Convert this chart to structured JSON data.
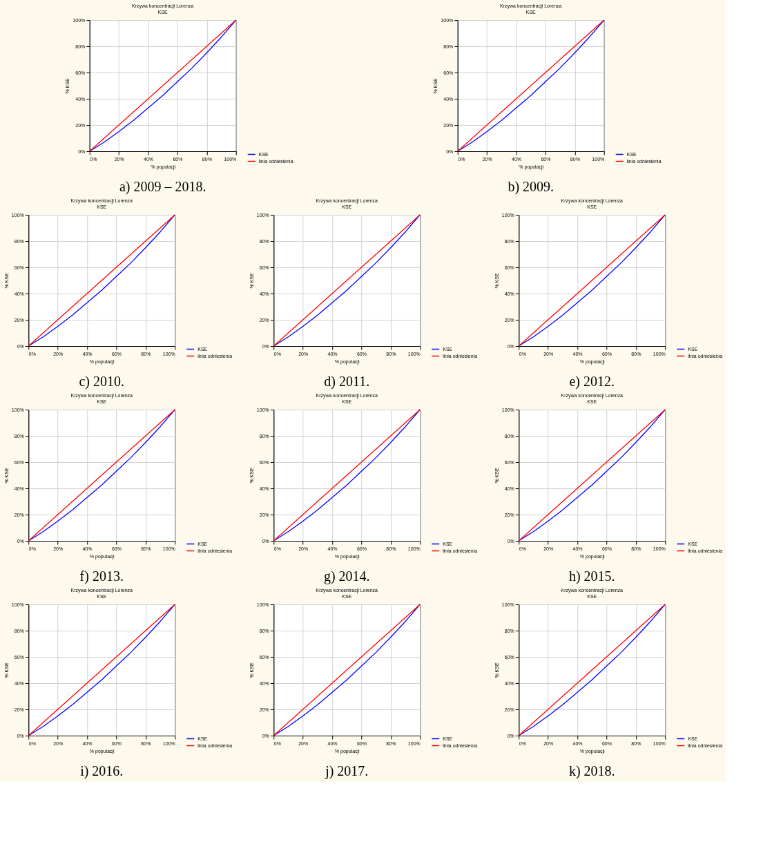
{
  "chart_data": [
    {
      "type": "line",
      "title": "Krzywa koncentracji Lorenza",
      "subtitle": "KSE",
      "xlabel": "% populacji",
      "ylabel": "% KSE",
      "annotations": [
        "a)    2009 – 2018."
      ],
      "x": [
        0,
        10,
        20,
        30,
        40,
        50,
        60,
        70,
        80,
        90,
        100
      ],
      "series": [
        {
          "name": "KSE",
          "color": "#0000ff",
          "values": [
            0,
            7,
            15,
            23.5,
            33,
            42.5,
            53,
            63.5,
            75,
            87,
            100
          ]
        },
        {
          "name": "linia odniesienia",
          "color": "#ff0000",
          "values": [
            0,
            10,
            20,
            30,
            40,
            50,
            60,
            70,
            80,
            90,
            100
          ]
        }
      ],
      "xlim": [
        0,
        100
      ],
      "ylim": [
        0,
        100
      ],
      "xticks": [
        {
          "value": 0,
          "label": "0%"
        },
        {
          "value": 20,
          "label": "20%"
        },
        {
          "value": 40,
          "label": "40%"
        },
        {
          "value": 60,
          "label": "60%"
        },
        {
          "value": 80,
          "label": "80%"
        },
        {
          "value": 100,
          "label": "100%"
        }
      ],
      "yticks": [
        {
          "value": 0,
          "label": "0%"
        },
        {
          "value": 20,
          "label": "20%"
        },
        {
          "value": 40,
          "label": "40%"
        },
        {
          "value": 60,
          "label": "60%"
        },
        {
          "value": 80,
          "label": "80%"
        },
        {
          "value": 100,
          "label": "100%"
        }
      ],
      "grid": true,
      "legend": "bottom right"
    },
    {
      "type": "line",
      "title": "Krzywa koncentracji Lorenza",
      "subtitle": "KSE",
      "xlabel": "% populacji",
      "ylabel": "% KSE",
      "annotations": [
        "b)    2009."
      ],
      "x": [
        0,
        10,
        20,
        30,
        40,
        50,
        60,
        70,
        80,
        90,
        100
      ],
      "series": [
        {
          "name": "KSE",
          "color": "#0000ff",
          "values": [
            0,
            7,
            15,
            23.5,
            33,
            42.5,
            53,
            63.5,
            75,
            87,
            100
          ]
        },
        {
          "name": "linia odniesienia",
          "color": "#ff0000",
          "values": [
            0,
            10,
            20,
            30,
            40,
            50,
            60,
            70,
            80,
            90,
            100
          ]
        }
      ],
      "xlim": [
        0,
        100
      ],
      "ylim": [
        0,
        100
      ],
      "xticks": [
        {
          "value": 0,
          "label": "0%"
        },
        {
          "value": 20,
          "label": "20%"
        },
        {
          "value": 40,
          "label": "40%"
        },
        {
          "value": 60,
          "label": "60%"
        },
        {
          "value": 80,
          "label": "80%"
        },
        {
          "value": 100,
          "label": "100%"
        }
      ],
      "yticks": [
        {
          "value": 0,
          "label": "0%"
        },
        {
          "value": 20,
          "label": "20%"
        },
        {
          "value": 40,
          "label": "40%"
        },
        {
          "value": 60,
          "label": "60%"
        },
        {
          "value": 80,
          "label": "80%"
        },
        {
          "value": 100,
          "label": "100%"
        }
      ],
      "grid": true,
      "legend": "bottom right"
    },
    {
      "type": "line",
      "title": "Krzywa koncentracji Lorenza",
      "subtitle": "KSE",
      "xlabel": "% populacji",
      "ylabel": "% KSE",
      "annotations": [
        "c)    2010."
      ],
      "x": [
        0,
        10,
        20,
        30,
        40,
        50,
        60,
        70,
        80,
        90,
        100
      ],
      "series": [
        {
          "name": "KSE",
          "color": "#0000ff",
          "values": [
            0,
            7,
            15,
            23.5,
            33,
            42.5,
            53,
            63.5,
            75,
            87,
            100
          ]
        },
        {
          "name": "linia odniesienia",
          "color": "#ff0000",
          "values": [
            0,
            10,
            20,
            30,
            40,
            50,
            60,
            70,
            80,
            90,
            100
          ]
        }
      ],
      "xlim": [
        0,
        100
      ],
      "ylim": [
        0,
        100
      ],
      "xticks": [
        {
          "value": 0,
          "label": "0%"
        },
        {
          "value": 20,
          "label": "20%"
        },
        {
          "value": 40,
          "label": "40%"
        },
        {
          "value": 60,
          "label": "60%"
        },
        {
          "value": 80,
          "label": "80%"
        },
        {
          "value": 100,
          "label": "100%"
        }
      ],
      "yticks": [
        {
          "value": 0,
          "label": "0%"
        },
        {
          "value": 20,
          "label": "20%"
        },
        {
          "value": 40,
          "label": "40%"
        },
        {
          "value": 60,
          "label": "60%"
        },
        {
          "value": 80,
          "label": "80%"
        },
        {
          "value": 100,
          "label": "100%"
        }
      ],
      "grid": true,
      "legend": "bottom right"
    },
    {
      "type": "line",
      "title": "Krzywa koncentracji Lorenza",
      "subtitle": "KSE",
      "xlabel": "% populacji",
      "ylabel": "% KSE",
      "annotations": [
        "d)    2011."
      ],
      "x": [
        0,
        10,
        20,
        30,
        40,
        50,
        60,
        70,
        80,
        90,
        100
      ],
      "series": [
        {
          "name": "KSE",
          "color": "#0000ff",
          "values": [
            0,
            7,
            15,
            23.5,
            33,
            42.5,
            53,
            63.5,
            75,
            87,
            100
          ]
        },
        {
          "name": "linia odniesienia",
          "color": "#ff0000",
          "values": [
            0,
            10,
            20,
            30,
            40,
            50,
            60,
            70,
            80,
            90,
            100
          ]
        }
      ],
      "xlim": [
        0,
        100
      ],
      "ylim": [
        0,
        100
      ],
      "xticks": [
        {
          "value": 0,
          "label": "0%"
        },
        {
          "value": 20,
          "label": "20%"
        },
        {
          "value": 40,
          "label": "40%"
        },
        {
          "value": 60,
          "label": "60%"
        },
        {
          "value": 80,
          "label": "80%"
        },
        {
          "value": 100,
          "label": "100%"
        }
      ],
      "yticks": [
        {
          "value": 0,
          "label": "0%"
        },
        {
          "value": 20,
          "label": "20%"
        },
        {
          "value": 40,
          "label": "40%"
        },
        {
          "value": 60,
          "label": "60%"
        },
        {
          "value": 80,
          "label": "80%"
        },
        {
          "value": 100,
          "label": "100%"
        }
      ],
      "grid": true,
      "legend": "bottom right"
    },
    {
      "type": "line",
      "title": "Krzywa koncentracji Lorenza",
      "subtitle": "KSE",
      "xlabel": "% populacji",
      "ylabel": "% KSE",
      "annotations": [
        "e)    2012."
      ],
      "x": [
        0,
        10,
        20,
        30,
        40,
        50,
        60,
        70,
        80,
        90,
        100
      ],
      "series": [
        {
          "name": "KSE",
          "color": "#0000ff",
          "values": [
            0,
            7,
            15,
            23.5,
            33,
            42.5,
            53,
            63.5,
            75,
            87,
            100
          ]
        },
        {
          "name": "linia odniesienia",
          "color": "#ff0000",
          "values": [
            0,
            10,
            20,
            30,
            40,
            50,
            60,
            70,
            80,
            90,
            100
          ]
        }
      ],
      "xlim": [
        0,
        100
      ],
      "ylim": [
        0,
        100
      ],
      "xticks": [
        {
          "value": 0,
          "label": "0%"
        },
        {
          "value": 20,
          "label": "20%"
        },
        {
          "value": 40,
          "label": "40%"
        },
        {
          "value": 60,
          "label": "60%"
        },
        {
          "value": 80,
          "label": "80%"
        },
        {
          "value": 100,
          "label": "100%"
        }
      ],
      "yticks": [
        {
          "value": 0,
          "label": "0%"
        },
        {
          "value": 20,
          "label": "20%"
        },
        {
          "value": 40,
          "label": "40%"
        },
        {
          "value": 60,
          "label": "60%"
        },
        {
          "value": 80,
          "label": "80%"
        },
        {
          "value": 100,
          "label": "100%"
        }
      ],
      "grid": true,
      "legend": "bottom right"
    },
    {
      "type": "line",
      "title": "Krzywa koncentracji Lorenza",
      "subtitle": "KSE",
      "xlabel": "% populacji",
      "ylabel": "% KSE",
      "annotations": [
        "f)    2013."
      ],
      "x": [
        0,
        10,
        20,
        30,
        40,
        50,
        60,
        70,
        80,
        90,
        100
      ],
      "series": [
        {
          "name": "KSE",
          "color": "#0000ff",
          "values": [
            0,
            7,
            15,
            23.5,
            33,
            42.5,
            53,
            63.5,
            75,
            87,
            100
          ]
        },
        {
          "name": "linia odniesienia",
          "color": "#ff0000",
          "values": [
            0,
            10,
            20,
            30,
            40,
            50,
            60,
            70,
            80,
            90,
            100
          ]
        }
      ],
      "xlim": [
        0,
        100
      ],
      "ylim": [
        0,
        100
      ],
      "xticks": [
        {
          "value": 0,
          "label": "0%"
        },
        {
          "value": 20,
          "label": "20%"
        },
        {
          "value": 40,
          "label": "40%"
        },
        {
          "value": 60,
          "label": "60%"
        },
        {
          "value": 80,
          "label": "80%"
        },
        {
          "value": 100,
          "label": "100%"
        }
      ],
      "yticks": [
        {
          "value": 0,
          "label": "0%"
        },
        {
          "value": 20,
          "label": "20%"
        },
        {
          "value": 40,
          "label": "40%"
        },
        {
          "value": 60,
          "label": "60%"
        },
        {
          "value": 80,
          "label": "80%"
        },
        {
          "value": 100,
          "label": "100%"
        }
      ],
      "grid": true,
      "legend": "bottom right"
    },
    {
      "type": "line",
      "title": "Krzywa koncentracji Lorenza",
      "subtitle": "KSE",
      "xlabel": "% populacji",
      "ylabel": "% KSE",
      "annotations": [
        "g)    2014."
      ],
      "x": [
        0,
        10,
        20,
        30,
        40,
        50,
        60,
        70,
        80,
        90,
        100
      ],
      "series": [
        {
          "name": "KSE",
          "color": "#0000ff",
          "values": [
            0,
            7,
            15,
            23.5,
            33,
            42.5,
            53,
            63.5,
            75,
            87,
            100
          ]
        },
        {
          "name": "linia odniesienia",
          "color": "#ff0000",
          "values": [
            0,
            10,
            20,
            30,
            40,
            50,
            60,
            70,
            80,
            90,
            100
          ]
        }
      ],
      "xlim": [
        0,
        100
      ],
      "ylim": [
        0,
        100
      ],
      "xticks": [
        {
          "value": 0,
          "label": "0%"
        },
        {
          "value": 20,
          "label": "20%"
        },
        {
          "value": 40,
          "label": "40%"
        },
        {
          "value": 60,
          "label": "60%"
        },
        {
          "value": 80,
          "label": "80%"
        },
        {
          "value": 100,
          "label": "100%"
        }
      ],
      "yticks": [
        {
          "value": 0,
          "label": "0%"
        },
        {
          "value": 20,
          "label": "20%"
        },
        {
          "value": 40,
          "label": "40%"
        },
        {
          "value": 60,
          "label": "60%"
        },
        {
          "value": 80,
          "label": "80%"
        },
        {
          "value": 100,
          "label": "100%"
        }
      ],
      "grid": true,
      "legend": "bottom right"
    },
    {
      "type": "line",
      "title": "Krzywa koncentracji Lorenza",
      "subtitle": "KSE",
      "xlabel": "% populacji",
      "ylabel": "% KSE",
      "annotations": [
        "h)    2015."
      ],
      "x": [
        0,
        10,
        20,
        30,
        40,
        50,
        60,
        70,
        80,
        90,
        100
      ],
      "series": [
        {
          "name": "KSE",
          "color": "#0000ff",
          "values": [
            0,
            7,
            15,
            23.5,
            33,
            42.5,
            53,
            63.5,
            75,
            87,
            100
          ]
        },
        {
          "name": "linia odniesienia",
          "color": "#ff0000",
          "values": [
            0,
            10,
            20,
            30,
            40,
            50,
            60,
            70,
            80,
            90,
            100
          ]
        }
      ],
      "xlim": [
        0,
        100
      ],
      "ylim": [
        0,
        100
      ],
      "xticks": [
        {
          "value": 0,
          "label": "0%"
        },
        {
          "value": 20,
          "label": "20%"
        },
        {
          "value": 40,
          "label": "40%"
        },
        {
          "value": 60,
          "label": "60%"
        },
        {
          "value": 80,
          "label": "80%"
        },
        {
          "value": 100,
          "label": "100%"
        }
      ],
      "yticks": [
        {
          "value": 0,
          "label": "0%"
        },
        {
          "value": 20,
          "label": "20%"
        },
        {
          "value": 40,
          "label": "40%"
        },
        {
          "value": 60,
          "label": "60%"
        },
        {
          "value": 80,
          "label": "80%"
        },
        {
          "value": 100,
          "label": "100%"
        }
      ],
      "grid": true,
      "legend": "bottom right"
    },
    {
      "type": "line",
      "title": "Krzywa koncentracji Lorenza",
      "subtitle": "KSE",
      "xlabel": "% populacji",
      "ylabel": "% KSE",
      "annotations": [
        "i)    2016."
      ],
      "x": [
        0,
        10,
        20,
        30,
        40,
        50,
        60,
        70,
        80,
        90,
        100
      ],
      "series": [
        {
          "name": "KSE",
          "color": "#0000ff",
          "values": [
            0,
            7,
            15,
            23.5,
            33,
            42.5,
            53,
            63.5,
            75,
            87,
            100
          ]
        },
        {
          "name": "linia odniesienia",
          "color": "#ff0000",
          "values": [
            0,
            10,
            20,
            30,
            40,
            50,
            60,
            70,
            80,
            90,
            100
          ]
        }
      ],
      "xlim": [
        0,
        100
      ],
      "ylim": [
        0,
        100
      ],
      "xticks": [
        {
          "value": 0,
          "label": "0%"
        },
        {
          "value": 20,
          "label": "20%"
        },
        {
          "value": 40,
          "label": "40%"
        },
        {
          "value": 60,
          "label": "60%"
        },
        {
          "value": 80,
          "label": "80%"
        },
        {
          "value": 100,
          "label": "100%"
        }
      ],
      "yticks": [
        {
          "value": 0,
          "label": "0%"
        },
        {
          "value": 20,
          "label": "20%"
        },
        {
          "value": 40,
          "label": "40%"
        },
        {
          "value": 60,
          "label": "60%"
        },
        {
          "value": 80,
          "label": "80%"
        },
        {
          "value": 100,
          "label": "100%"
        }
      ],
      "grid": true,
      "legend": "bottom right"
    },
    {
      "type": "line",
      "title": "Krzywa koncentracji Lorenza",
      "subtitle": "KSE",
      "xlabel": "% populacji",
      "ylabel": "% KSE",
      "annotations": [
        "j)    2017."
      ],
      "x": [
        0,
        10,
        20,
        30,
        40,
        50,
        60,
        70,
        80,
        90,
        100
      ],
      "series": [
        {
          "name": "KSE",
          "color": "#0000ff",
          "values": [
            0,
            7,
            15,
            23.5,
            33,
            42.5,
            53,
            63.5,
            75,
            87,
            100
          ]
        },
        {
          "name": "linia odniesienia",
          "color": "#ff0000",
          "values": [
            0,
            10,
            20,
            30,
            40,
            50,
            60,
            70,
            80,
            90,
            100
          ]
        }
      ],
      "xlim": [
        0,
        100
      ],
      "ylim": [
        0,
        100
      ],
      "xticks": [
        {
          "value": 0,
          "label": "0%"
        },
        {
          "value": 20,
          "label": "20%"
        },
        {
          "value": 40,
          "label": "40%"
        },
        {
          "value": 60,
          "label": "60%"
        },
        {
          "value": 80,
          "label": "80%"
        },
        {
          "value": 100,
          "label": "100%"
        }
      ],
      "yticks": [
        {
          "value": 0,
          "label": "0%"
        },
        {
          "value": 20,
          "label": "20%"
        },
        {
          "value": 40,
          "label": "40%"
        },
        {
          "value": 60,
          "label": "60%"
        },
        {
          "value": 80,
          "label": "80%"
        },
        {
          "value": 100,
          "label": "100%"
        }
      ],
      "grid": true,
      "legend": "bottom right"
    },
    {
      "type": "line",
      "title": "Krzywa koncentracji Lorenza",
      "subtitle": "KSE",
      "xlabel": "% populacji",
      "ylabel": "% KSE",
      "annotations": [
        "k)    2018."
      ],
      "x": [
        0,
        10,
        20,
        30,
        40,
        50,
        60,
        70,
        80,
        90,
        100
      ],
      "series": [
        {
          "name": "KSE",
          "color": "#0000ff",
          "values": [
            0,
            7,
            15,
            23.5,
            33,
            42.5,
            53,
            63.5,
            75,
            87,
            100
          ]
        },
        {
          "name": "linia odniesienia",
          "color": "#ff0000",
          "values": [
            0,
            10,
            20,
            30,
            40,
            50,
            60,
            70,
            80,
            90,
            100
          ]
        }
      ],
      "xlim": [
        0,
        100
      ],
      "ylim": [
        0,
        100
      ],
      "xticks": [
        {
          "value": 0,
          "label": "0%"
        },
        {
          "value": 20,
          "label": "20%"
        },
        {
          "value": 40,
          "label": "40%"
        },
        {
          "value": 60,
          "label": "60%"
        },
        {
          "value": 80,
          "label": "80%"
        },
        {
          "value": 100,
          "label": "100%"
        }
      ],
      "yticks": [
        {
          "value": 0,
          "label": "0%"
        },
        {
          "value": 20,
          "label": "20%"
        },
        {
          "value": 40,
          "label": "40%"
        },
        {
          "value": 60,
          "label": "60%"
        },
        {
          "value": 80,
          "label": "80%"
        },
        {
          "value": 100,
          "label": "100%"
        }
      ],
      "grid": true,
      "legend": "bottom right"
    }
  ]
}
